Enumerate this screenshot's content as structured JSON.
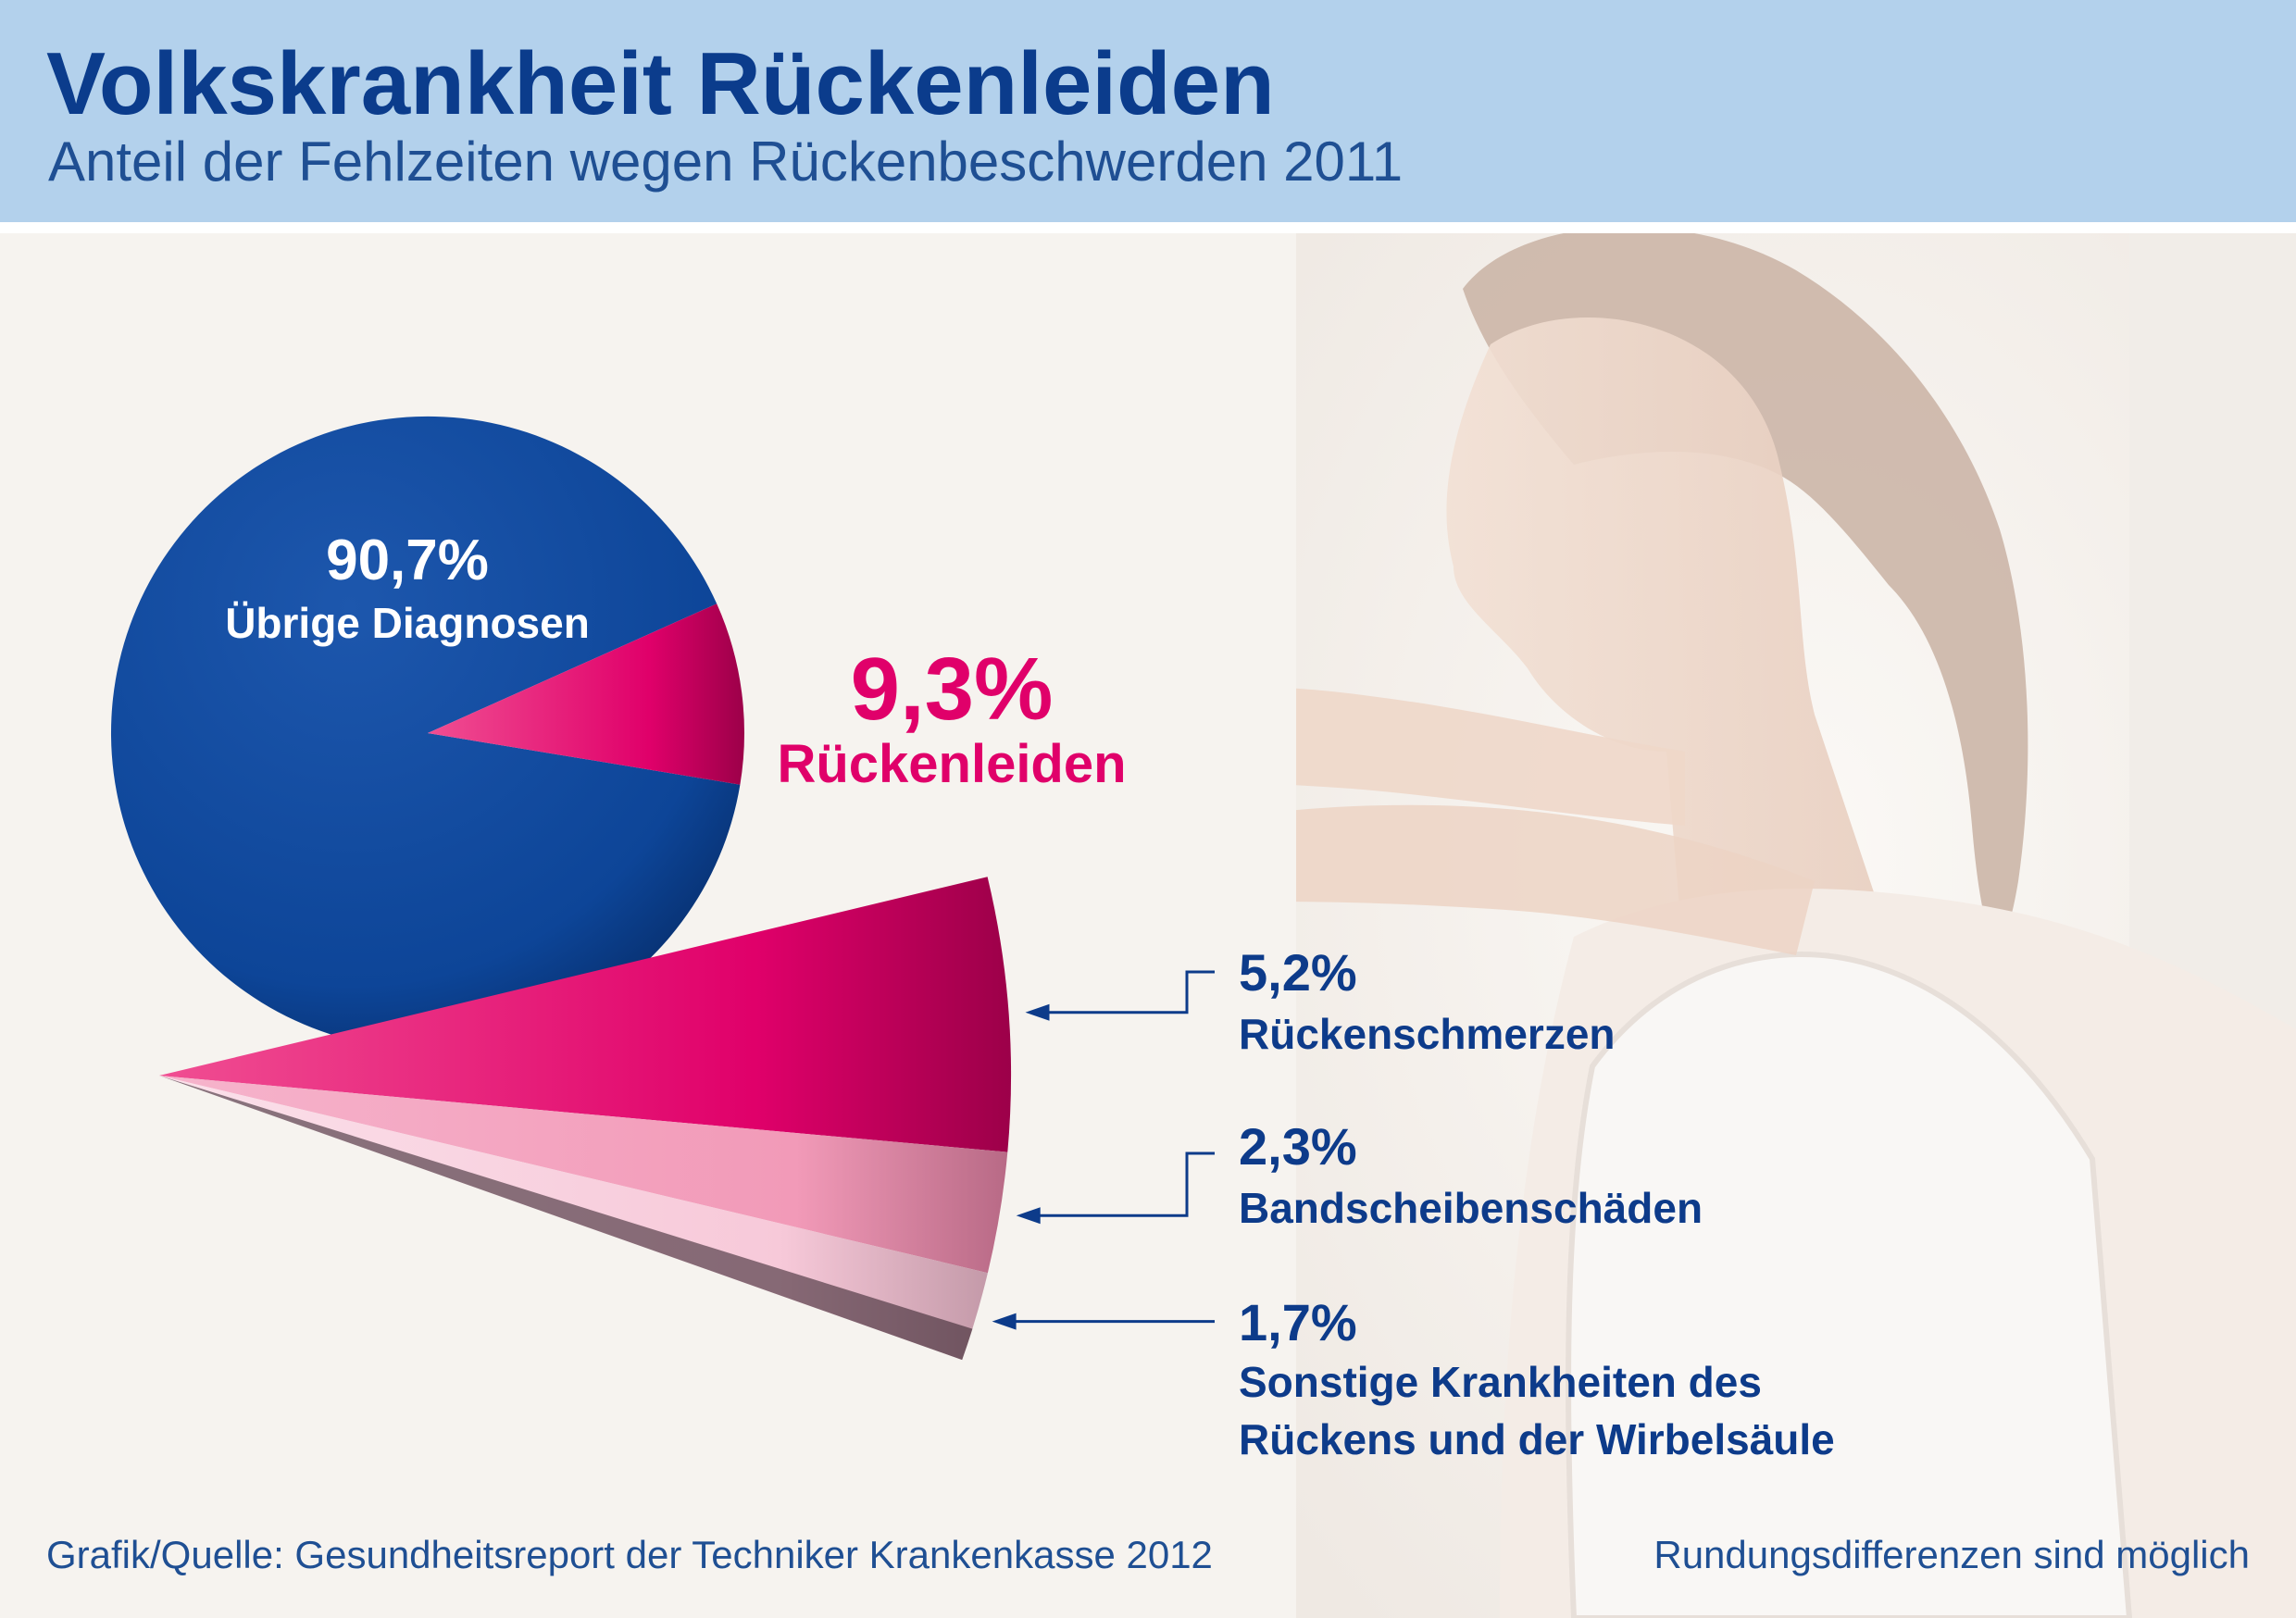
{
  "header": {
    "title": "Volkskrankheit Rückenleiden",
    "subtitle": "Anteil der Fehlzeiten wegen Rückenbeschwerden 2011"
  },
  "colors": {
    "header_bg": "#b3d1ec",
    "title": "#0b3c8c",
    "pie_blue": "#0d4598",
    "accent_magenta": "#e0006a",
    "light_pink": "#f29ab8",
    "pale_pink": "#f7c9d9",
    "label_blue": "#0d3b8a"
  },
  "chart_data": {
    "type": "pie",
    "title": "Volkskrankheit Rückenleiden",
    "subtitle": "Anteil der Fehlzeiten wegen Rückenbeschwerden 2011",
    "unit": "%",
    "slices": [
      {
        "name": "Übrige Diagnosen",
        "value": 90.7,
        "label": "90,7%",
        "color": "#0d4598"
      },
      {
        "name": "Rückenleiden",
        "value": 9.3,
        "label": "9,3%",
        "color": "#e0006a"
      }
    ],
    "breakdown": {
      "of": "Rückenleiden",
      "segments": [
        {
          "name": "Rückenschmerzen",
          "value": 5.2,
          "label": "5,2%",
          "color": "#e0006a"
        },
        {
          "name": "Bandscheibenschäden",
          "value": 2.3,
          "label": "2,3%",
          "color": "#f29ab8"
        },
        {
          "name": "Sonstige Krankheiten des Rückens und der Wirbelsäule",
          "lines": [
            "Sonstige Krankheiten des",
            "Rückens und der Wirbelsäule"
          ],
          "value": 1.7,
          "label": "1,7%",
          "color": "#f7c9d9"
        }
      ]
    }
  },
  "footer": {
    "source": "Grafik/Quelle: Gesundheitsreport der Techniker Krankenkasse 2012",
    "note": "Rundungsdifferenzen sind möglich"
  }
}
